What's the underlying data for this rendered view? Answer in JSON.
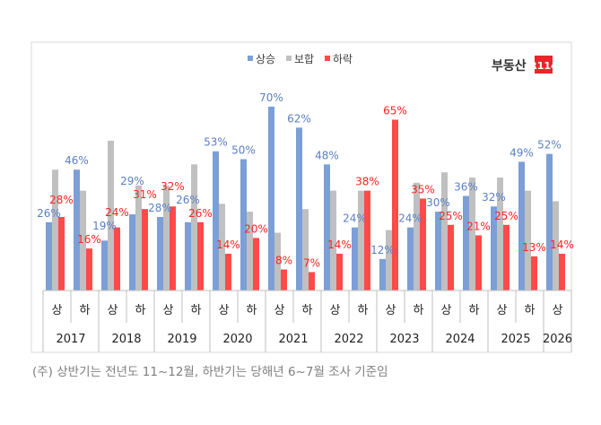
{
  "chart_data": {
    "type": "bar",
    "title": "",
    "legend": {
      "placement": "top"
    },
    "logo_text": "부동산R114",
    "categories": [
      {
        "half": "상",
        "year": "2017"
      },
      {
        "half": "하",
        "year": "2017"
      },
      {
        "half": "상",
        "year": "2018"
      },
      {
        "half": "하",
        "year": "2018"
      },
      {
        "half": "상",
        "year": "2019"
      },
      {
        "half": "하",
        "year": "2019"
      },
      {
        "half": "상",
        "year": "2020"
      },
      {
        "half": "하",
        "year": "2020"
      },
      {
        "half": "상",
        "year": "2021"
      },
      {
        "half": "하",
        "year": "2021"
      },
      {
        "half": "상",
        "year": "2022"
      },
      {
        "half": "하",
        "year": "2022"
      },
      {
        "half": "상",
        "year": "2023"
      },
      {
        "half": "하",
        "year": "2023"
      },
      {
        "half": "상",
        "year": "2024"
      },
      {
        "half": "하",
        "year": "2024"
      },
      {
        "half": "상",
        "year": "2025"
      },
      {
        "half": "하",
        "year": "2025"
      },
      {
        "half": "상",
        "year": "2026"
      }
    ],
    "years": [
      "2017",
      "2018",
      "2019",
      "2020",
      "2021",
      "2022",
      "2023",
      "2024",
      "2025",
      "2026"
    ],
    "series": [
      {
        "name": "상승",
        "color": "#7b9fd6",
        "labelColor": "#5b7fc4",
        "labeled": true,
        "values": [
          26,
          46,
          19,
          29,
          28,
          26,
          53,
          50,
          70,
          62,
          48,
          24,
          12,
          24,
          30,
          36,
          32,
          49,
          52
        ]
      },
      {
        "name": "보합",
        "color": "#c0c0c0",
        "labeled": false,
        "values": [
          46,
          38,
          57,
          40,
          40,
          48,
          33,
          30,
          22,
          31,
          38,
          38,
          23,
          41,
          45,
          43,
          43,
          38,
          34
        ]
      },
      {
        "name": "하락",
        "color": "#ff4a4a",
        "labelColor": "#ff2020",
        "labeled": true,
        "values": [
          28,
          16,
          24,
          31,
          32,
          26,
          14,
          20,
          8,
          7,
          14,
          38,
          65,
          35,
          25,
          21,
          25,
          13,
          14
        ]
      }
    ],
    "value_suffix": "%",
    "ylim": [
      0,
      100
    ],
    "grid": false
  },
  "caption": "(주) 상반기는 전년도 11~12월, 하반기는 당해년 6~7월 조사 기준임"
}
